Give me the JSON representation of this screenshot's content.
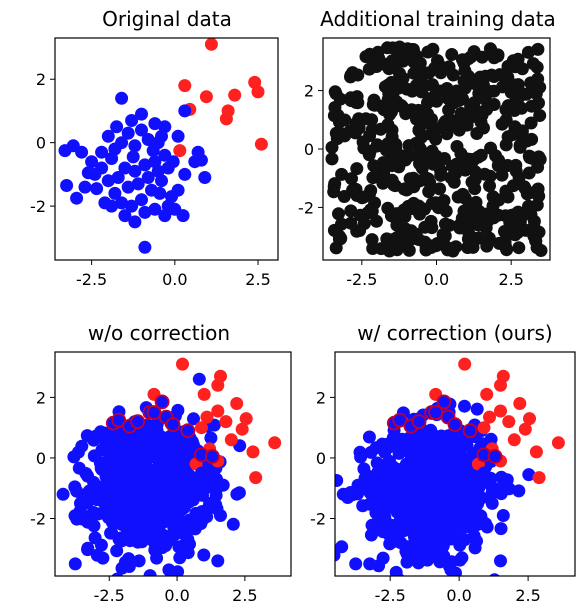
{
  "colors": {
    "red": "#ff2020",
    "blue": "#1010ff",
    "black": "#111111",
    "edge": "#c00030"
  },
  "chart_data": [
    {
      "type": "scatter",
      "title": "Original data",
      "xlim": [
        -3.6,
        3.1
      ],
      "ylim": [
        -3.7,
        3.3
      ],
      "xticks": [
        "-2.5",
        "0.0",
        "2.5"
      ],
      "xtick_values": [
        -2.5,
        0.0,
        2.5
      ],
      "yticks": [
        "2",
        "0",
        "-2"
      ],
      "ytick_values": [
        2,
        0,
        -2
      ],
      "series": [
        {
          "color": "red",
          "points": [
            [
              1.1,
              3.1
            ],
            [
              2.4,
              1.9
            ],
            [
              2.5,
              1.6
            ],
            [
              1.8,
              1.5
            ],
            [
              1.6,
              1.0
            ],
            [
              1.55,
              0.75
            ],
            [
              0.95,
              1.45
            ],
            [
              0.3,
              1.8
            ],
            [
              0.45,
              1.05
            ],
            [
              2.6,
              -0.05
            ],
            [
              0.15,
              -0.25
            ]
          ]
        },
        {
          "color": "blue",
          "points": [
            [
              -1.6,
              1.4
            ],
            [
              -3.3,
              -0.25
            ],
            [
              -3.05,
              -0.1
            ],
            [
              -2.8,
              -0.3
            ],
            [
              -3.25,
              -1.35
            ],
            [
              -2.95,
              -1.75
            ],
            [
              -2.7,
              -1.4
            ],
            [
              -2.4,
              -1.0
            ],
            [
              -2.5,
              -0.6
            ],
            [
              -2.2,
              -0.3
            ],
            [
              -2.0,
              0.2
            ],
            [
              -1.8,
              -0.2
            ],
            [
              -1.6,
              0.0
            ],
            [
              -1.4,
              0.3
            ],
            [
              -1.2,
              -0.1
            ],
            [
              -1.0,
              0.4
            ],
            [
              -0.8,
              0.1
            ],
            [
              -0.5,
              0.0
            ],
            [
              -0.3,
              0.5
            ],
            [
              0.1,
              0.2
            ],
            [
              -2.0,
              -1.2
            ],
            [
              -1.8,
              -1.6
            ],
            [
              -1.6,
              -1.9
            ],
            [
              -1.3,
              -2.0
            ],
            [
              -1.0,
              -1.8
            ],
            [
              -0.7,
              -1.5
            ],
            [
              -0.4,
              -1.2
            ],
            [
              -0.2,
              -2.0
            ],
            [
              -0.1,
              -1.7
            ],
            [
              0.1,
              -1.5
            ],
            [
              0.3,
              -1.0
            ],
            [
              0.6,
              -0.6
            ],
            [
              0.9,
              -1.1
            ],
            [
              0.7,
              -0.3
            ],
            [
              0.8,
              -0.55
            ],
            [
              -1.5,
              -0.8
            ],
            [
              -1.2,
              -0.9
            ],
            [
              -0.9,
              -0.7
            ],
            [
              -0.6,
              -0.6
            ],
            [
              -0.3,
              -0.4
            ],
            [
              -2.2,
              -0.8
            ],
            [
              -1.9,
              -0.5
            ],
            [
              -1.7,
              -1.1
            ],
            [
              -1.4,
              -1.4
            ],
            [
              -1.1,
              -1.3
            ],
            [
              -0.8,
              -1.1
            ],
            [
              -0.5,
              -0.9
            ],
            [
              -0.2,
              -0.8
            ],
            [
              -1.5,
              -2.3
            ],
            [
              -1.2,
              -2.5
            ],
            [
              -0.9,
              -2.2
            ],
            [
              -0.6,
              -2.1
            ],
            [
              -0.3,
              -2.3
            ],
            [
              0.0,
              -2.1
            ],
            [
              -0.9,
              -3.3
            ],
            [
              -1.3,
              0.7
            ],
            [
              -1.0,
              0.9
            ],
            [
              -0.6,
              0.6
            ],
            [
              -1.75,
              0.5
            ],
            [
              -2.1,
              -1.9
            ],
            [
              -1.9,
              -2.0
            ],
            [
              -0.4,
              0.2
            ],
            [
              0.3,
              1.0
            ],
            [
              -2.35,
              -1.45
            ],
            [
              -2.6,
              -0.95
            ],
            [
              -1.25,
              -0.45
            ],
            [
              -0.65,
              -0.25
            ],
            [
              -0.05,
              -0.6
            ],
            [
              0.25,
              -2.3
            ],
            [
              -0.45,
              -1.6
            ]
          ]
        }
      ]
    },
    {
      "type": "scatter",
      "title": "Additional training data",
      "xlim": [
        -3.8,
        3.8
      ],
      "ylim": [
        -3.8,
        3.8
      ],
      "xticks": [
        "-2.5",
        "0.0",
        "2.5"
      ],
      "xtick_values": [
        -2.5,
        0.0,
        2.5
      ],
      "yticks": [
        "2",
        "0",
        "-2"
      ],
      "ytick_values": [
        2,
        0,
        -2
      ],
      "uniform_points": {
        "count": 520,
        "range": [
          -3.5,
          3.5
        ]
      },
      "series": [
        {
          "color": "black"
        }
      ]
    },
    {
      "type": "scatter",
      "title": "w/o correction",
      "xlim": [
        -4.5,
        4.2
      ],
      "ylim": [
        -3.9,
        3.5
      ],
      "xticks": [
        "-2.5",
        "0.0",
        "2.5"
      ],
      "xtick_values": [
        -2.5,
        0.0,
        2.5
      ],
      "yticks": [
        "2",
        "0",
        "-2"
      ],
      "ytick_values": [
        2,
        0,
        -2
      ],
      "series": [
        {
          "color": "red",
          "points": [
            [
              0.2,
              3.1
            ],
            [
              -0.85,
              2.1
            ],
            [
              1.5,
              2.4
            ],
            [
              2.2,
              1.8
            ],
            [
              2.55,
              1.3
            ],
            [
              3.6,
              0.5
            ],
            [
              2.8,
              0.2
            ],
            [
              2.9,
              -0.65
            ],
            [
              1.1,
              1.35
            ],
            [
              1.5,
              1.55
            ],
            [
              1.8,
              1.2
            ],
            [
              0.9,
              1.0
            ],
            [
              2.0,
              0.6
            ],
            [
              1.2,
              0.3
            ],
            [
              1.5,
              -0.1
            ],
            [
              0.7,
              -0.2
            ],
            [
              2.4,
              0.95
            ],
            [
              -2.2,
              1.2
            ],
            [
              1.0,
              2.1
            ],
            [
              1.6,
              2.7
            ]
          ]
        },
        {
          "color": "blue",
          "points": [
            [
              -4.2,
              -1.2
            ],
            [
              -3.75,
              -3.5
            ],
            [
              -2.2,
              -4.0
            ],
            [
              -0.5,
              -4.1
            ],
            [
              1.5,
              -3.4
            ],
            [
              0.1,
              -3.3
            ],
            [
              -3.3,
              -0.6
            ],
            [
              -3.7,
              -1.1
            ],
            [
              0.9,
              -0.5
            ],
            [
              1.2,
              -1.5
            ],
            [
              1.6,
              -1.9
            ],
            [
              0.8,
              -2.0
            ],
            [
              -1.4,
              -3.4
            ],
            [
              -0.3,
              -3.7
            ]
          ]
        },
        {
          "color": "blue",
          "edge": true,
          "points": [
            [
              -2.35,
              1.15
            ],
            [
              -2.15,
              1.25
            ],
            [
              -1.75,
              1.05
            ],
            [
              -1.45,
              1.2
            ],
            [
              -1.0,
              1.5
            ],
            [
              -0.85,
              1.5
            ],
            [
              -0.55,
              1.85
            ],
            [
              -0.4,
              1.35
            ],
            [
              -0.15,
              1.1
            ],
            [
              0.4,
              0.9
            ],
            [
              0.9,
              0.1
            ],
            [
              1.3,
              0.05
            ]
          ]
        }
      ],
      "blob": {
        "color": "blue",
        "count": 700,
        "center": [
          -1.0,
          -1.0
        ],
        "sd": [
          1.1,
          1.05
        ]
      }
    },
    {
      "type": "scatter",
      "title": "w/ correction (ours)",
      "xlim": [
        -4.5,
        4.2
      ],
      "ylim": [
        -3.9,
        3.5
      ],
      "xticks": [
        "-2.5",
        "0.0",
        "2.5"
      ],
      "xtick_values": [
        -2.5,
        0.0,
        2.5
      ],
      "yticks": [
        "2",
        "0",
        "-2"
      ],
      "ytick_values": [
        2,
        0,
        -2
      ],
      "series": [
        {
          "color": "red",
          "points": [
            [
              0.2,
              3.1
            ],
            [
              -0.85,
              2.1
            ],
            [
              1.5,
              2.4
            ],
            [
              2.2,
              1.8
            ],
            [
              2.55,
              1.3
            ],
            [
              3.6,
              0.5
            ],
            [
              2.8,
              0.2
            ],
            [
              2.9,
              -0.65
            ],
            [
              1.1,
              1.35
            ],
            [
              1.5,
              1.55
            ],
            [
              1.8,
              1.2
            ],
            [
              0.9,
              1.0
            ],
            [
              2.0,
              0.6
            ],
            [
              1.2,
              0.3
            ],
            [
              1.5,
              -0.1
            ],
            [
              0.7,
              -0.2
            ],
            [
              2.4,
              0.95
            ],
            [
              -2.2,
              1.2
            ],
            [
              1.0,
              2.1
            ],
            [
              1.6,
              2.7
            ]
          ]
        },
        {
          "color": "blue",
          "points": [
            [
              -4.2,
              -1.2
            ],
            [
              -3.75,
              -3.5
            ],
            [
              -2.2,
              -4.0
            ],
            [
              -0.5,
              -4.1
            ],
            [
              1.5,
              -3.4
            ],
            [
              0.1,
              -3.3
            ],
            [
              -3.3,
              -0.6
            ],
            [
              -3.7,
              -1.1
            ],
            [
              0.9,
              -0.5
            ],
            [
              1.2,
              -1.5
            ],
            [
              1.6,
              -1.9
            ],
            [
              0.8,
              -2.0
            ],
            [
              -1.4,
              -3.4
            ],
            [
              -0.3,
              -3.7
            ]
          ]
        },
        {
          "color": "blue",
          "edge": true,
          "points": [
            [
              -2.35,
              1.15
            ],
            [
              -2.15,
              1.25
            ],
            [
              -1.75,
              1.05
            ],
            [
              -1.45,
              1.2
            ],
            [
              -1.0,
              1.5
            ],
            [
              -0.85,
              1.5
            ],
            [
              -0.55,
              1.85
            ],
            [
              -0.4,
              1.35
            ],
            [
              -0.15,
              1.1
            ],
            [
              0.4,
              0.9
            ],
            [
              0.9,
              0.1
            ],
            [
              1.3,
              0.05
            ]
          ]
        }
      ],
      "blob": {
        "color": "blue",
        "count": 700,
        "center": [
          -1.0,
          -1.0
        ],
        "sd": [
          1.1,
          1.05
        ]
      }
    }
  ]
}
